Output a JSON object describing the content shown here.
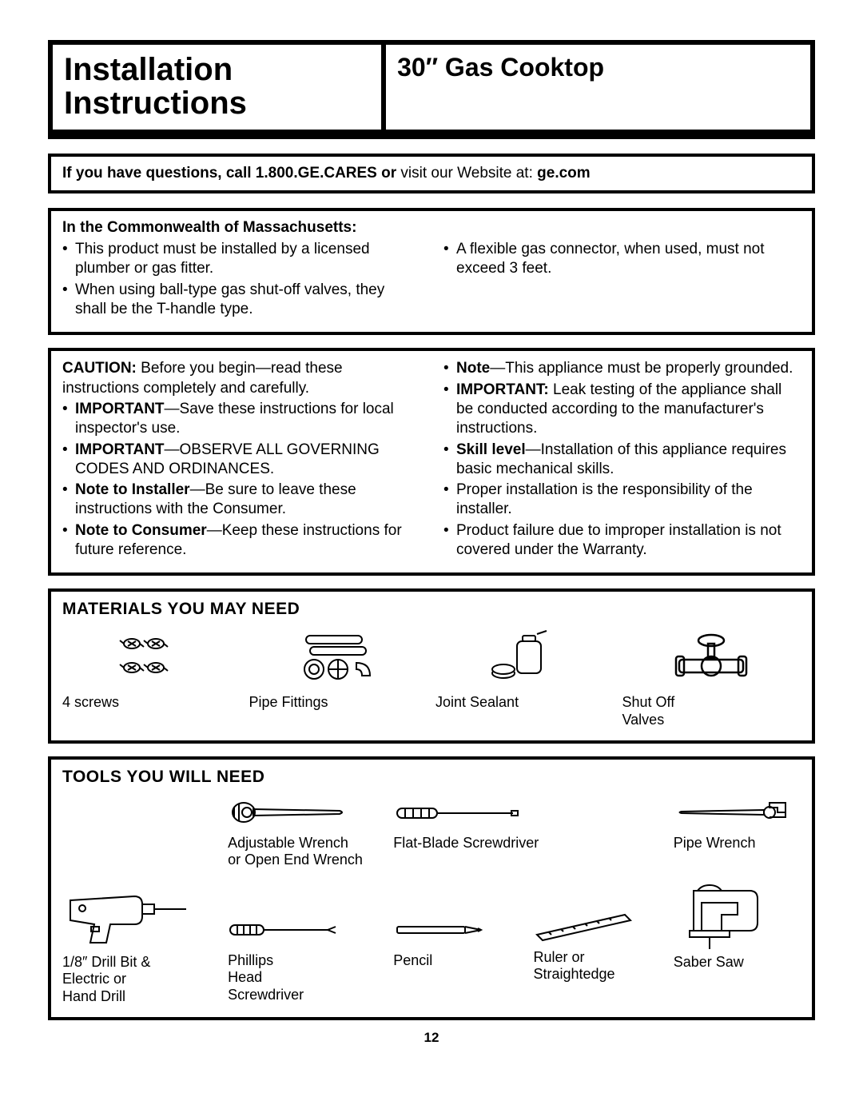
{
  "header": {
    "left_line1": "Installation",
    "left_line2": "Instructions",
    "right": "30″ Gas Cooktop"
  },
  "questions": {
    "bold1": "If you have questions, call 1.800.GE.CARES or ",
    "plain1": "visit our Website at: ",
    "bold2": "ge.com"
  },
  "mass": {
    "heading": "In the Commonwealth of Massachusetts:",
    "left": [
      "This product must be installed by a licensed plumber or gas fitter.",
      "When using ball-type gas shut-off valves, they shall be the T-handle type."
    ],
    "right": [
      "A flexible gas connector, when used, must not exceed 3 feet."
    ]
  },
  "caution": {
    "left_lead_bold": "CAUTION:",
    "left_lead_rest": " Before you begin—read these instructions completely and carefully.",
    "left_items": [
      {
        "b": "IMPORTANT",
        "rest": "—Save these instructions for local inspector's use."
      },
      {
        "b": "IMPORTANT",
        "rest": "—OBSERVE ALL GOVERNING CODES AND ORDINANCES."
      },
      {
        "b": "Note to Installer",
        "rest": "—Be sure to leave these instructions with the Consumer."
      },
      {
        "b": "Note to Consumer",
        "rest": "—Keep these instructions for future reference."
      }
    ],
    "right_items": [
      {
        "b": "Note",
        "rest": "—This appliance must be properly grounded."
      },
      {
        "b": "IMPORTANT:",
        "rest": " Leak testing of the appliance shall be conducted according to the manufacturer's instructions."
      },
      {
        "b": "Skill level",
        "rest": "—Installation of this appliance requires basic mechanical skills."
      },
      {
        "b": "",
        "rest": "Proper installation is the responsibility of the installer."
      },
      {
        "b": "",
        "rest": "Product failure due to improper installation is not covered under the Warranty."
      }
    ]
  },
  "materials": {
    "heading": "MATERIALS YOU MAY NEED",
    "items": [
      {
        "label": "4 screws"
      },
      {
        "label": "Pipe Fittings"
      },
      {
        "label": "Joint Sealant"
      },
      {
        "label": "Shut Off\nValves"
      }
    ]
  },
  "tools": {
    "heading": "TOOLS YOU WILL NEED",
    "row1": [
      {
        "label": ""
      },
      {
        "label": "Adjustable Wrench\nor Open End Wrench"
      },
      {
        "label": "Flat-Blade Screwdriver"
      },
      {
        "label": ""
      },
      {
        "label": "Pipe Wrench"
      }
    ],
    "row2": [
      {
        "label": "1/8″ Drill Bit &\nElectric or\nHand Drill"
      },
      {
        "label": "Phillips\nHead\nScrewdriver"
      },
      {
        "label": "Pencil"
      },
      {
        "label": "Ruler or\nStraightedge"
      },
      {
        "label": "Saber Saw"
      }
    ]
  },
  "page_number": "12",
  "colors": {
    "border": "#000000",
    "text": "#000000",
    "background": "#ffffff"
  }
}
